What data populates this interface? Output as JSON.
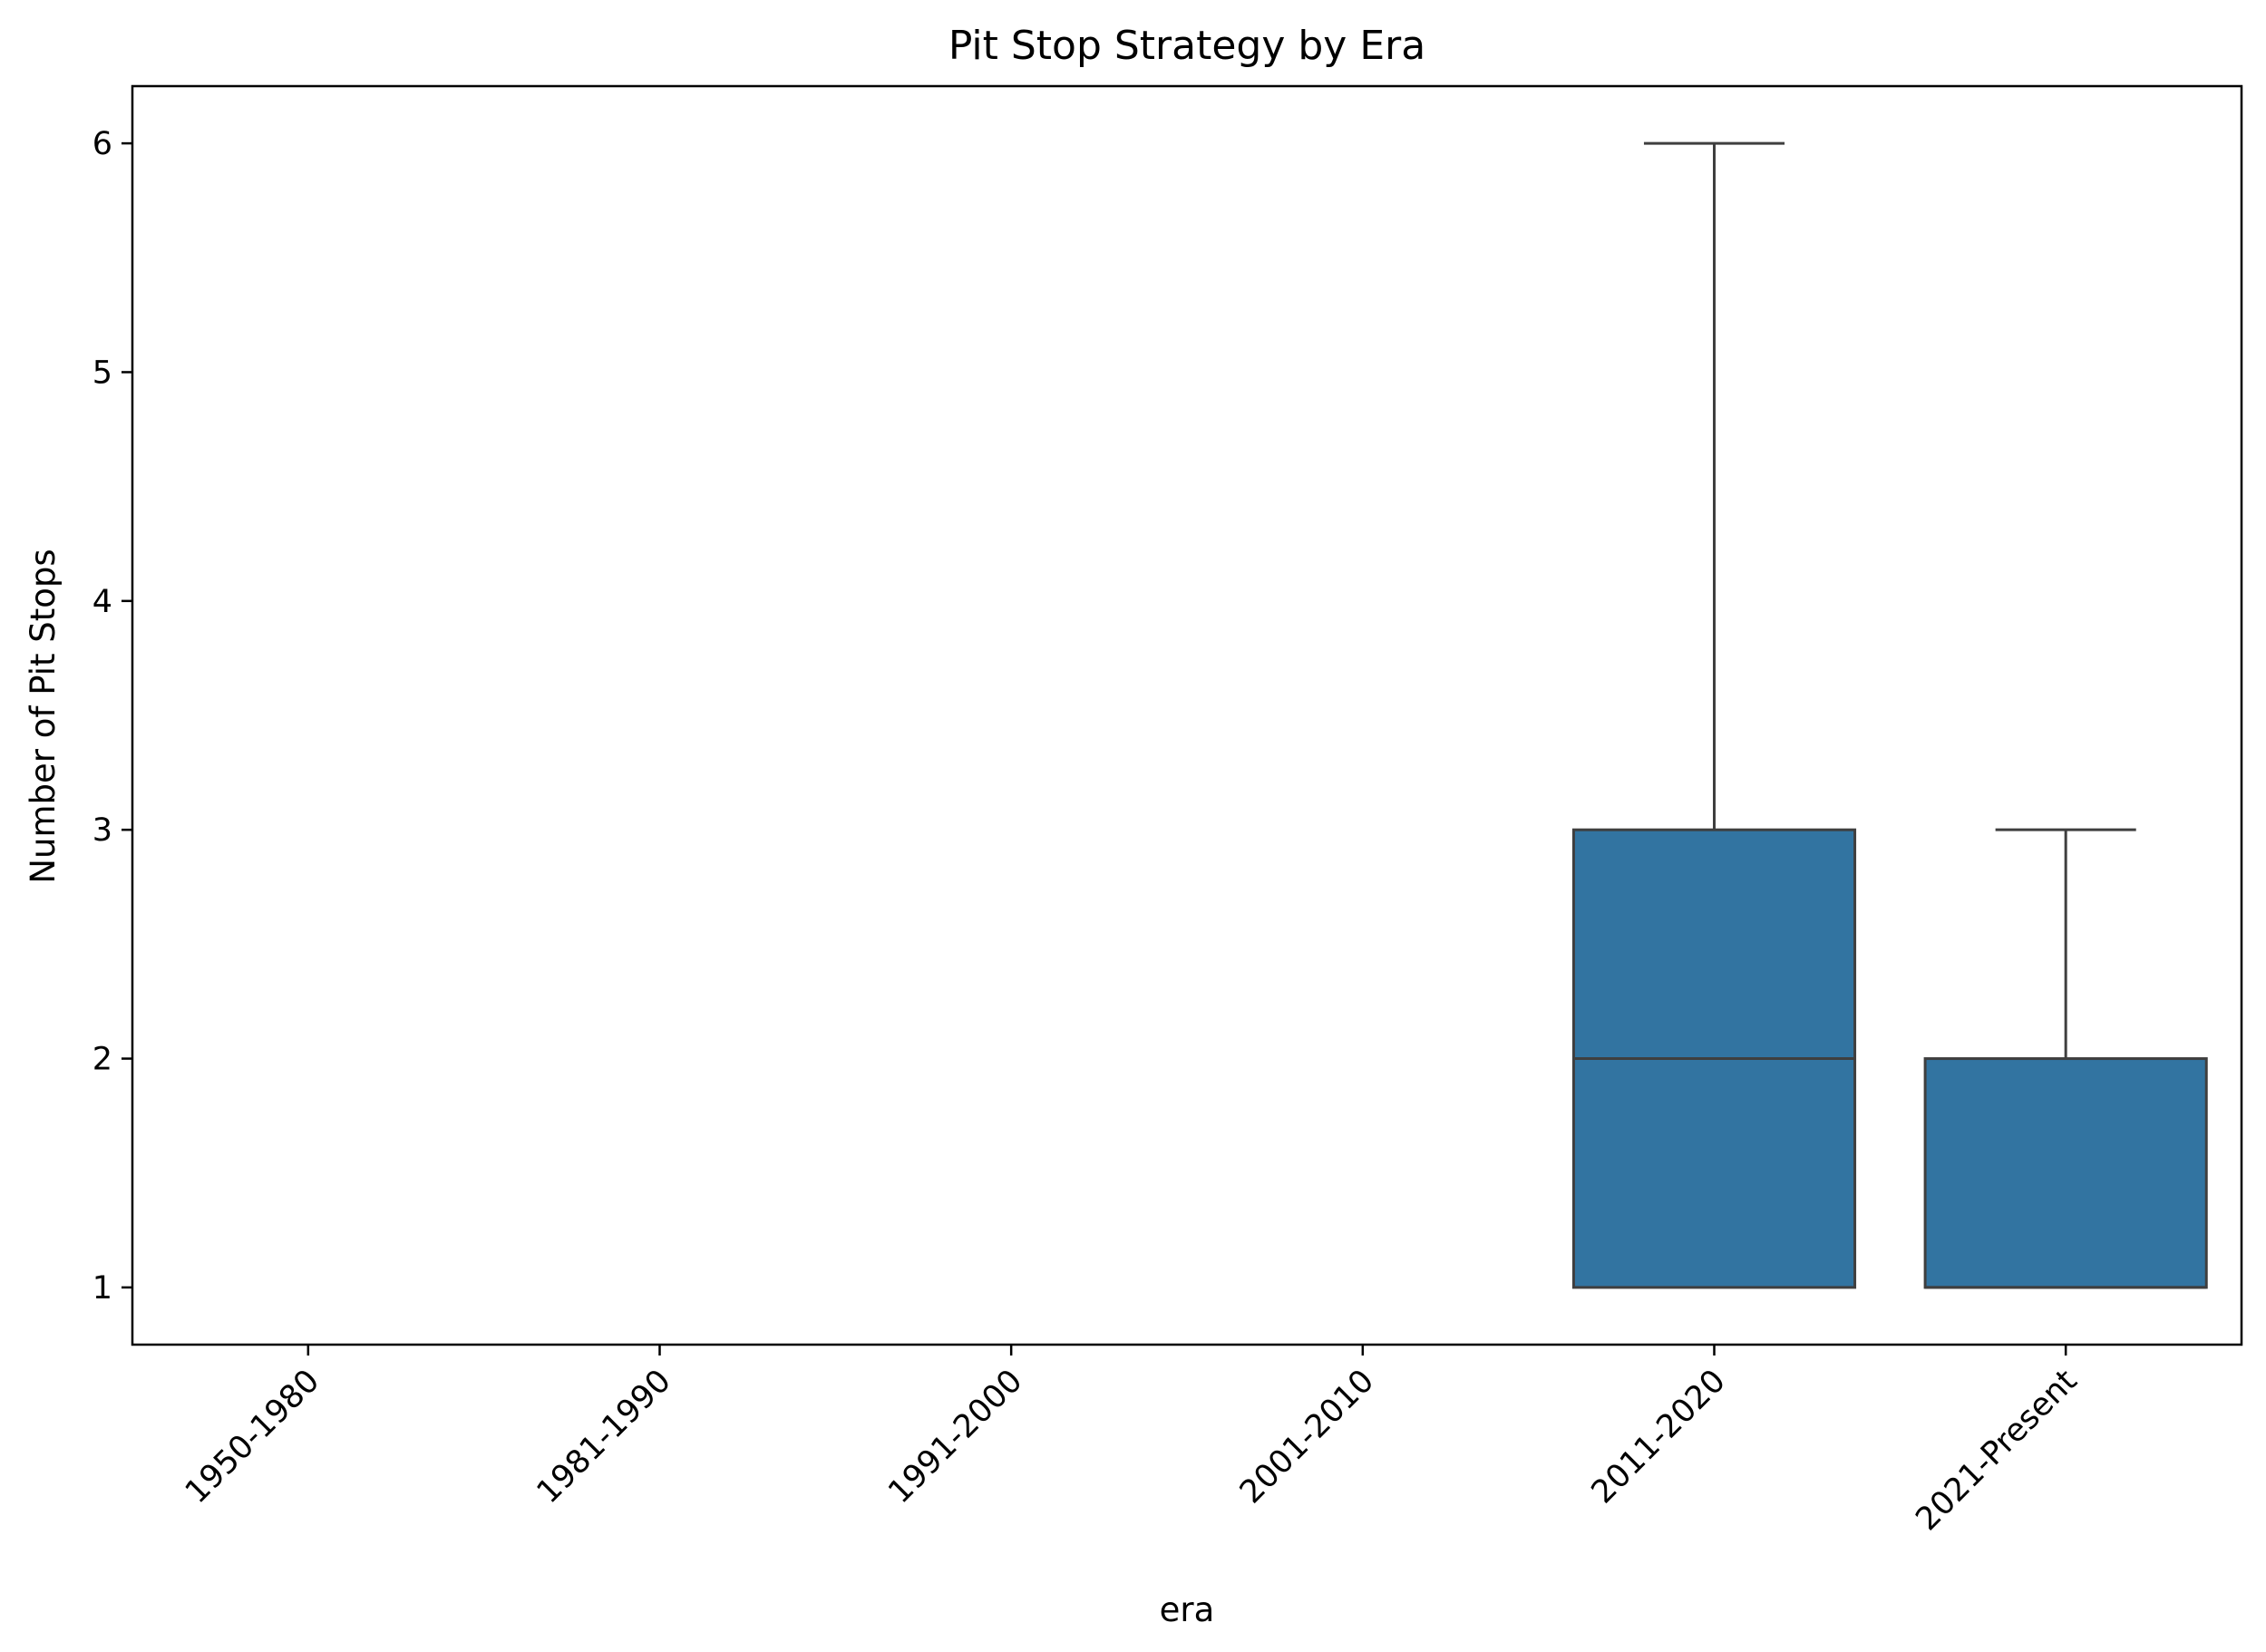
{
  "chart_data": {
    "type": "box",
    "title": "Pit Stop Strategy by Era",
    "xlabel": "era",
    "ylabel": "Number of Pit Stops",
    "categories": [
      "1950-1980",
      "1981-1990",
      "1991-2000",
      "2001-2010",
      "2011-2020",
      "2021-Present"
    ],
    "yticks": [
      1,
      2,
      3,
      4,
      5,
      6
    ],
    "ylim": [
      0.75,
      6.25
    ],
    "grid": false,
    "legend": "none",
    "boxes": [
      {
        "category": "1950-1980",
        "empty": true
      },
      {
        "category": "1981-1990",
        "empty": true
      },
      {
        "category": "1991-2000",
        "empty": true
      },
      {
        "category": "2001-2010",
        "empty": true
      },
      {
        "category": "2011-2020",
        "whisker_low": 1,
        "q1": 1,
        "median": 2,
        "q3": 3,
        "whisker_high": 6
      },
      {
        "category": "2021-Present",
        "whisker_low": 1,
        "q1": 1,
        "median": 1,
        "q3": 2,
        "whisker_high": 3
      }
    ],
    "colors": {
      "box_fill": "#3274a1",
      "box_edge": "#3f3f3f",
      "axis": "#000000"
    }
  }
}
